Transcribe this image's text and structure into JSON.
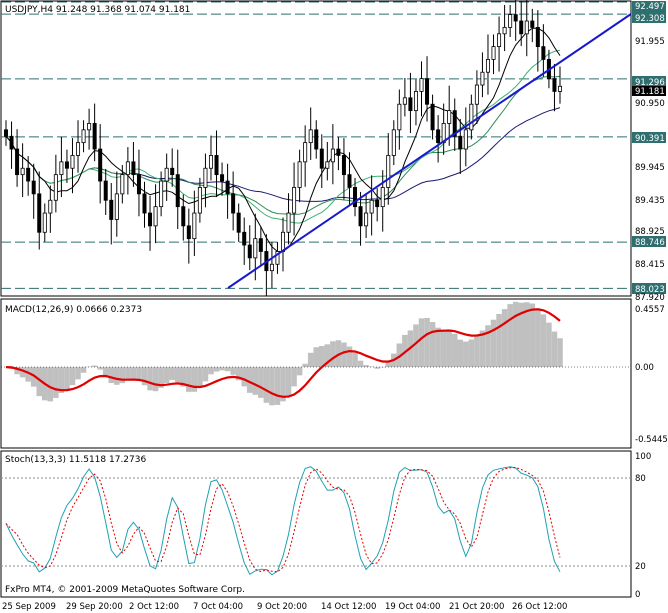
{
  "header": {
    "symbol_line": "USDJPY,H4  91.248 91.368 91.074 91.181",
    "macd_line": "MACD(12,26,9) 0.0666 0.2373",
    "stoch_line": "Stoch(13,3,3) 11.5118 17.2736",
    "copyright": "FxPro MT4, © 2001-2009 MetaQuotes Software Corp."
  },
  "price_axis": [
    "92.497",
    "92.308",
    "91.955",
    "91.296",
    "91.181",
    "90.950",
    "90.391",
    "89.945",
    "89.435",
    "88.925",
    "88.746",
    "88.415",
    "88.023",
    "87.920"
  ],
  "macd_axis": [
    "0.4557",
    "0.00",
    "-0.5445"
  ],
  "stoch_axis": [
    "100",
    "80",
    "20",
    "0"
  ],
  "time_axis": [
    "25 Sep 2009",
    "29 Sep 20:00",
    "2 Oct 12:00",
    "7 Oct 04:00",
    "9 Oct 20:00",
    "14 Oct 12:00",
    "19 Oct 04:00",
    "21 Oct 20:00",
    "26 Oct 12:00"
  ],
  "colors": {
    "background": "#ffffff",
    "candle": "#000000",
    "trendline": "#1a1acc",
    "ma_slow": "#191970",
    "ma_mid": "#2e8b57",
    "ma_fast": "#3cb371",
    "ma_fastest": "#000000",
    "level_line": "#2f6f6f",
    "macd_hist": "#c0c0c0",
    "macd_signal": "#e00000",
    "stoch_main": "#20a0b0",
    "stoch_signal": "#e00000"
  },
  "chart_data": [
    {
      "type": "candlestick",
      "title": "USDJPY,H4",
      "ylim": [
        87.92,
        92.497
      ],
      "levels": [
        92.497,
        92.308,
        91.296,
        90.391,
        88.746,
        88.023
      ],
      "current_price": 91.181,
      "closes": [
        90.4,
        90.2,
        89.8,
        89.9,
        89.7,
        89.5,
        88.9,
        89.2,
        89.4,
        89.8,
        90.0,
        89.9,
        90.1,
        90.3,
        90.5,
        90.6,
        90.2,
        89.7,
        89.4,
        89.1,
        89.5,
        89.8,
        90.0,
        89.8,
        89.5,
        89.2,
        89.0,
        89.3,
        89.7,
        89.9,
        89.8,
        89.3,
        89.0,
        88.8,
        89.2,
        89.6,
        89.9,
        90.1,
        89.8,
        89.7,
        89.5,
        89.2,
        88.9,
        88.7,
        88.5,
        88.8,
        88.6,
        88.3,
        88.4,
        88.6,
        88.9,
        89.2,
        89.6,
        90.0,
        90.3,
        90.5,
        90.2,
        89.9,
        90.0,
        90.2,
        90.1,
        89.8,
        89.6,
        89.3,
        89.0,
        89.2,
        89.4,
        89.3,
        89.6,
        90.1,
        90.5,
        90.9,
        91.0,
        90.8,
        91.1,
        91.3,
        90.9,
        90.5,
        90.3,
        90.6,
        90.8,
        90.4,
        90.2,
        90.5,
        90.9,
        91.2,
        91.4,
        91.6,
        91.8,
        92.0,
        92.1,
        92.3,
        92.2,
        92.0,
        92.2,
        92.1,
        91.8,
        91.6,
        91.3,
        91.1,
        91.18
      ]
    },
    {
      "type": "line",
      "title": "MACD(12,26,9)",
      "ylim": [
        -0.5445,
        0.4557
      ],
      "values_main": 0.0666,
      "values_signal": 0.2373
    },
    {
      "type": "line",
      "title": "Stoch(13,3,3)",
      "ylim": [
        0,
        100
      ],
      "levels": [
        20,
        80
      ],
      "values_main": 11.5118,
      "values_signal": 17.2736
    }
  ]
}
